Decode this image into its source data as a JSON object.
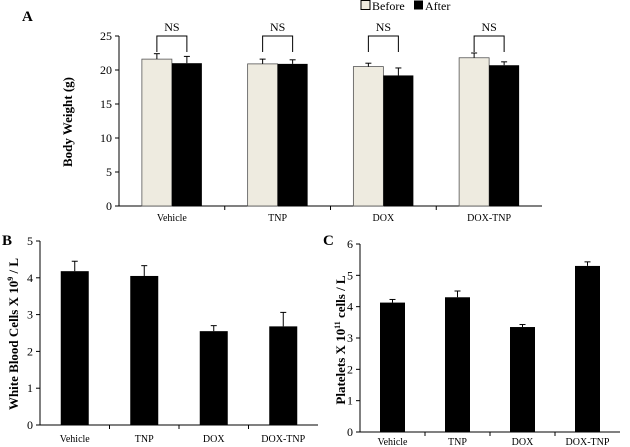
{
  "chart_data": [
    {
      "panel": "A",
      "type": "bar",
      "ylabel": "Body Weight (g)",
      "ylim": [
        0,
        25
      ],
      "yticks": [
        0,
        5,
        10,
        15,
        20,
        25
      ],
      "categories": [
        "Vehicle",
        "TNP",
        "DOX",
        "DOX-TNP"
      ],
      "series": [
        {
          "name": "Before",
          "color": "#eeebe0",
          "values": [
            21.6,
            20.9,
            20.5,
            21.8
          ],
          "errors": [
            0.8,
            0.7,
            0.5,
            0.7
          ]
        },
        {
          "name": "After",
          "color": "#000000",
          "values": [
            21.0,
            20.9,
            19.2,
            20.7
          ],
          "errors": [
            1.0,
            0.6,
            1.1,
            0.5
          ]
        }
      ],
      "annotations": [
        "NS",
        "NS",
        "NS",
        "NS"
      ],
      "legend": "top-right"
    },
    {
      "panel": "B",
      "type": "bar",
      "ylabel": "White Blood Cells X 10",
      "ylabel_sup": "9",
      "ylabel_tail": " / L",
      "ylim": [
        0,
        5
      ],
      "yticks": [
        0,
        1,
        2,
        3,
        4,
        5
      ],
      "categories": [
        "Vehicle",
        "TNP",
        "DOX",
        "DOX-TNP"
      ],
      "series": [
        {
          "name": "WBC",
          "color": "#000000",
          "values": [
            4.18,
            4.05,
            2.55,
            2.68
          ],
          "errors": [
            0.27,
            0.28,
            0.15,
            0.38
          ]
        }
      ]
    },
    {
      "panel": "C",
      "type": "bar",
      "ylabel": "Platelets X 10",
      "ylabel_sup": "11",
      "ylabel_tail": " cells / L",
      "ylim": [
        0,
        6
      ],
      "yticks": [
        0,
        1,
        2,
        3,
        4,
        5,
        6
      ],
      "categories": [
        "Vehicle",
        "TNP",
        "DOX",
        "DOX-TNP"
      ],
      "series": [
        {
          "name": "Platelets",
          "color": "#000000",
          "values": [
            4.13,
            4.3,
            3.35,
            5.3
          ],
          "errors": [
            0.1,
            0.2,
            0.08,
            0.13
          ]
        }
      ]
    }
  ]
}
